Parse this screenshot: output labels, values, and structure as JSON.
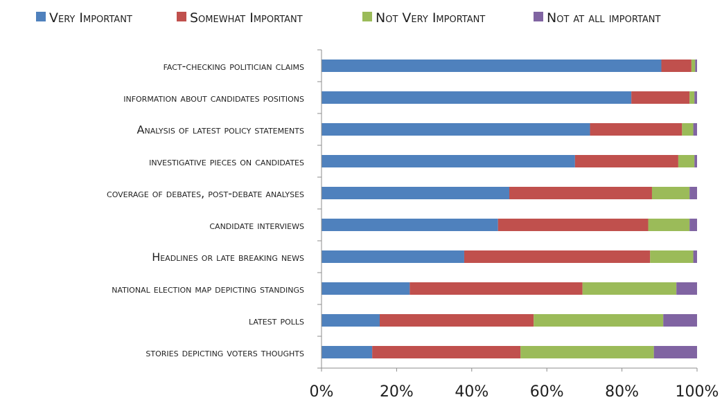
{
  "chart_data": {
    "type": "bar",
    "orientation": "horizontal",
    "stacked": true,
    "title": "",
    "xlabel": "",
    "ylabel": "",
    "xlim": [
      0,
      100
    ],
    "grid": false,
    "legend_position": "top",
    "x_ticks": [
      "0%",
      "20%",
      "40%",
      "60%",
      "80%",
      "100%"
    ],
    "categories": [
      "fact-checking politician claims",
      "information about candidates positions",
      "Analysis of latest policy statements",
      "investigative pieces on candidates",
      "coverage of debates, post-debate analyses",
      "candidate interviews",
      "Headlines or late breaking news",
      "national election map depicting standings",
      "latest polls",
      "stories depicting voters thoughts"
    ],
    "series": [
      {
        "name": "Very Important",
        "color": "#4f81bd",
        "values": [
          90.5,
          82.5,
          71.5,
          67.5,
          50,
          47,
          38,
          23.5,
          15.5,
          13.5
        ]
      },
      {
        "name": "Somewhat  Important",
        "color": "#c0504d",
        "values": [
          8,
          15.5,
          24.5,
          27.5,
          38,
          40,
          49.5,
          46,
          41,
          39.5
        ]
      },
      {
        "name": "Not Very Important",
        "color": "#9bbb59",
        "values": [
          1,
          1.3,
          3,
          4.3,
          10,
          11,
          11.5,
          25,
          34.5,
          35.5
        ]
      },
      {
        "name": "Not at all important",
        "color": "#8064a2",
        "values": [
          0.5,
          0.7,
          1,
          0.7,
          2,
          2,
          1,
          5.5,
          9,
          11.5
        ]
      }
    ]
  }
}
